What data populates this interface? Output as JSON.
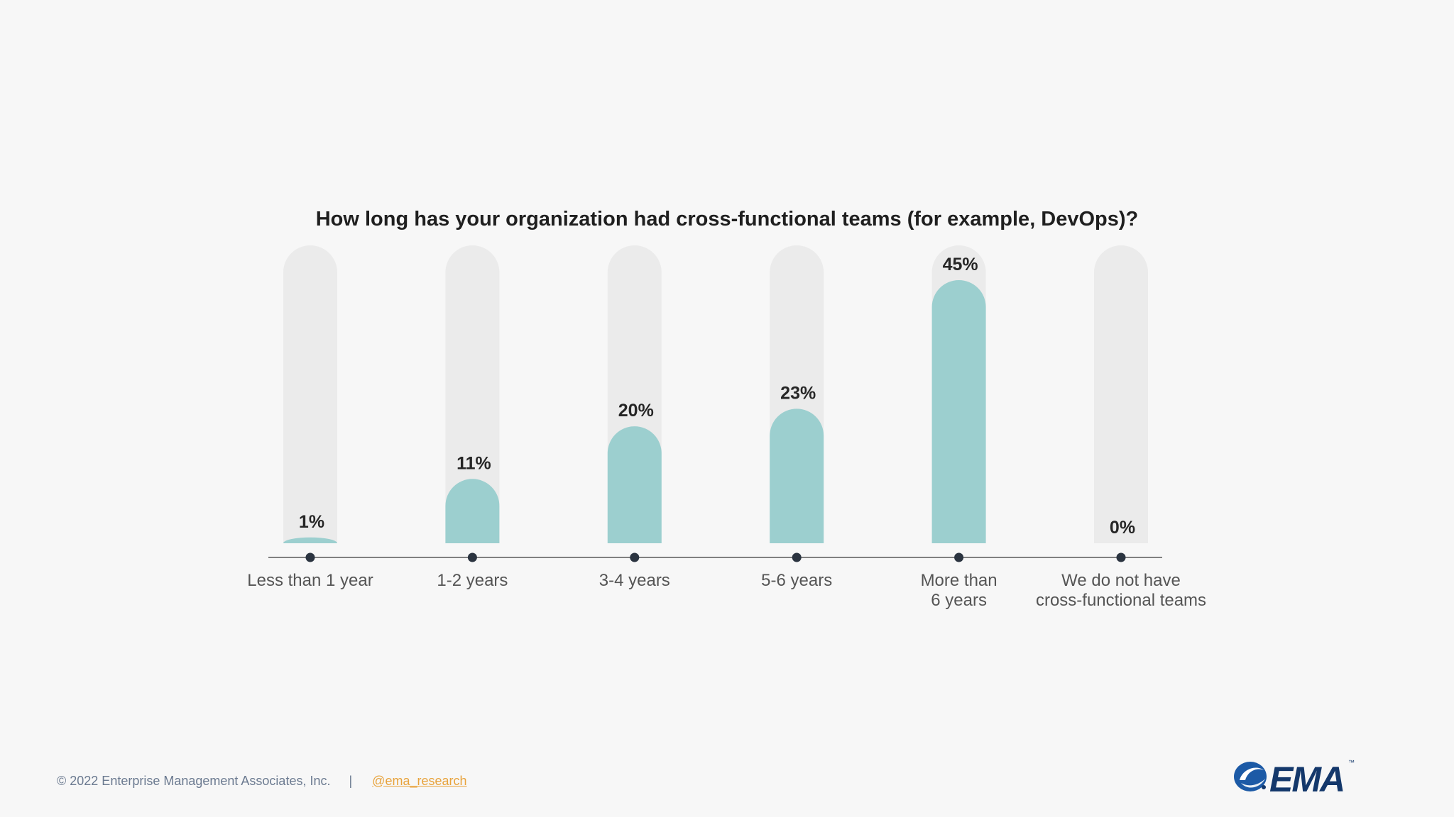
{
  "chart_data": {
    "type": "bar",
    "title": "How long has your organization had cross-functional teams (for example, DevOps)?",
    "categories": [
      [
        "Less than 1 year"
      ],
      [
        "1-2 years"
      ],
      [
        "3-4 years"
      ],
      [
        "5-6 years"
      ],
      [
        "More than",
        "6 years"
      ],
      [
        "We do not have",
        "cross-functional teams"
      ]
    ],
    "values": [
      1,
      11,
      20,
      23,
      45,
      0
    ],
    "value_labels": [
      "1%",
      "11%",
      "20%",
      "23%",
      "45%",
      "0%"
    ],
    "ylim": [
      0,
      50
    ],
    "xlabel": "",
    "ylabel": "",
    "grid": false,
    "legend": "none",
    "colors": {
      "bar": "#9ccfcf",
      "track": "#ebebeb",
      "axis": "#808080",
      "marker": "#2b3440"
    }
  },
  "footer": {
    "copyright": "© 2022 Enterprise Management Associates, Inc.",
    "separator": "|",
    "handle": "@ema_research"
  },
  "logo": {
    "text": "EMA",
    "trademark": "™",
    "icon": "ema-swoosh-icon"
  }
}
